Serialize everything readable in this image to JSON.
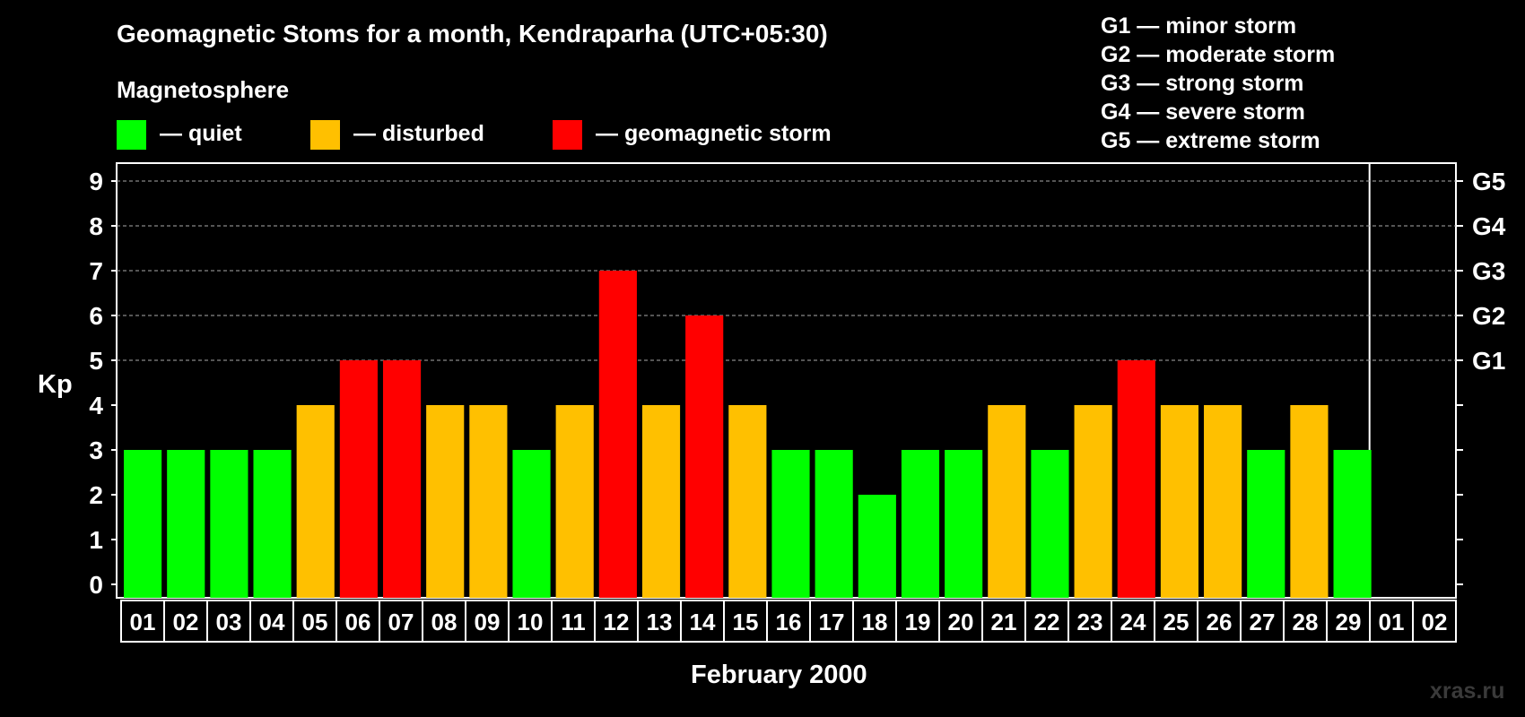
{
  "title": "Geomagnetic Stoms for a month, Kendraparha (UTC+05:30)",
  "legend": {
    "heading": "Magnetosphere",
    "items": [
      {
        "label": "— quiet",
        "color": "#00ff00"
      },
      {
        "label": "— disturbed",
        "color": "#ffc000"
      },
      {
        "label": "— geomagnetic storm",
        "color": "#ff0000"
      }
    ]
  },
  "storm_scale": [
    "G1 — minor storm",
    "G2 — moderate storm",
    "G3 — strong storm",
    "G4 — severe storm",
    "G5 — extreme storm"
  ],
  "watermark": "xras.ru",
  "chart_data": {
    "type": "bar",
    "title": "Geomagnetic Stoms for a month, Kendraparha (UTC+05:30)",
    "xlabel": "February 2000",
    "ylabel": "Kp",
    "ylim": [
      0,
      9
    ],
    "yticks": [
      0,
      1,
      2,
      3,
      4,
      5,
      6,
      7,
      8,
      9
    ],
    "right_axis_labels": [
      {
        "kp": 5,
        "label": "G1"
      },
      {
        "kp": 6,
        "label": "G2"
      },
      {
        "kp": 7,
        "label": "G3"
      },
      {
        "kp": 8,
        "label": "G4"
      },
      {
        "kp": 9,
        "label": "G5"
      }
    ],
    "grid": "horizontal dashed at Kp 5-9",
    "categories": [
      "01",
      "02",
      "03",
      "04",
      "05",
      "06",
      "07",
      "08",
      "09",
      "10",
      "11",
      "12",
      "13",
      "14",
      "15",
      "16",
      "17",
      "18",
      "19",
      "20",
      "21",
      "22",
      "23",
      "24",
      "25",
      "26",
      "27",
      "28",
      "29",
      "01",
      "02"
    ],
    "values": [
      3,
      3,
      3,
      3,
      4,
      5,
      5,
      4,
      4,
      3,
      4,
      7,
      4,
      6,
      4,
      3,
      3,
      2,
      3,
      3,
      4,
      3,
      4,
      5,
      4,
      4,
      3,
      4,
      3,
      null,
      null
    ],
    "colors": {
      "quiet": "#00ff00",
      "disturbed": "#ffc000",
      "storm": "#ff0000"
    }
  }
}
